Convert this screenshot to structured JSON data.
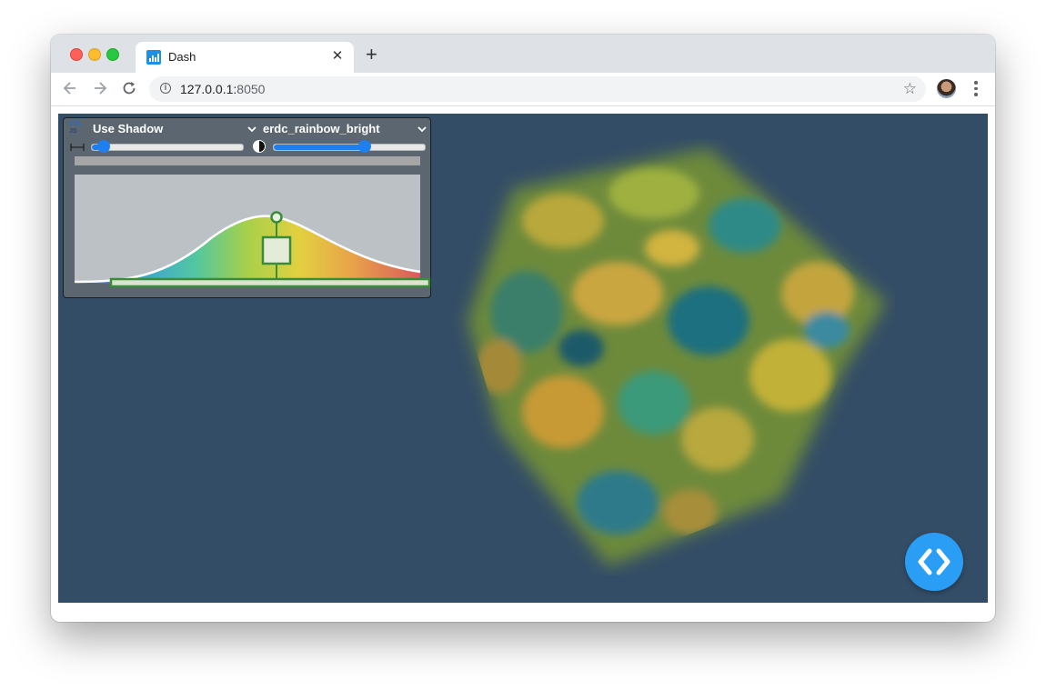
{
  "browser": {
    "tab_title": "Dash",
    "new_tab_symbol": "+",
    "close_symbol": "✕",
    "url_host": "127.0.0.1:",
    "url_port": "8050",
    "icons": [
      "back-icon",
      "forward-icon",
      "reload-icon",
      "info-icon",
      "star-icon",
      "avatar",
      "menu-icon"
    ]
  },
  "panel": {
    "shadow_option": "Use Shadow",
    "colormap": "erdc_rainbow_bright",
    "window_slider_fraction": 0.08,
    "level_slider_fraction": 0.6,
    "accent_color": "#1e7ff0"
  },
  "viewer": {
    "background_color": "#344d66",
    "nav_button_color": "#2a9df4"
  }
}
